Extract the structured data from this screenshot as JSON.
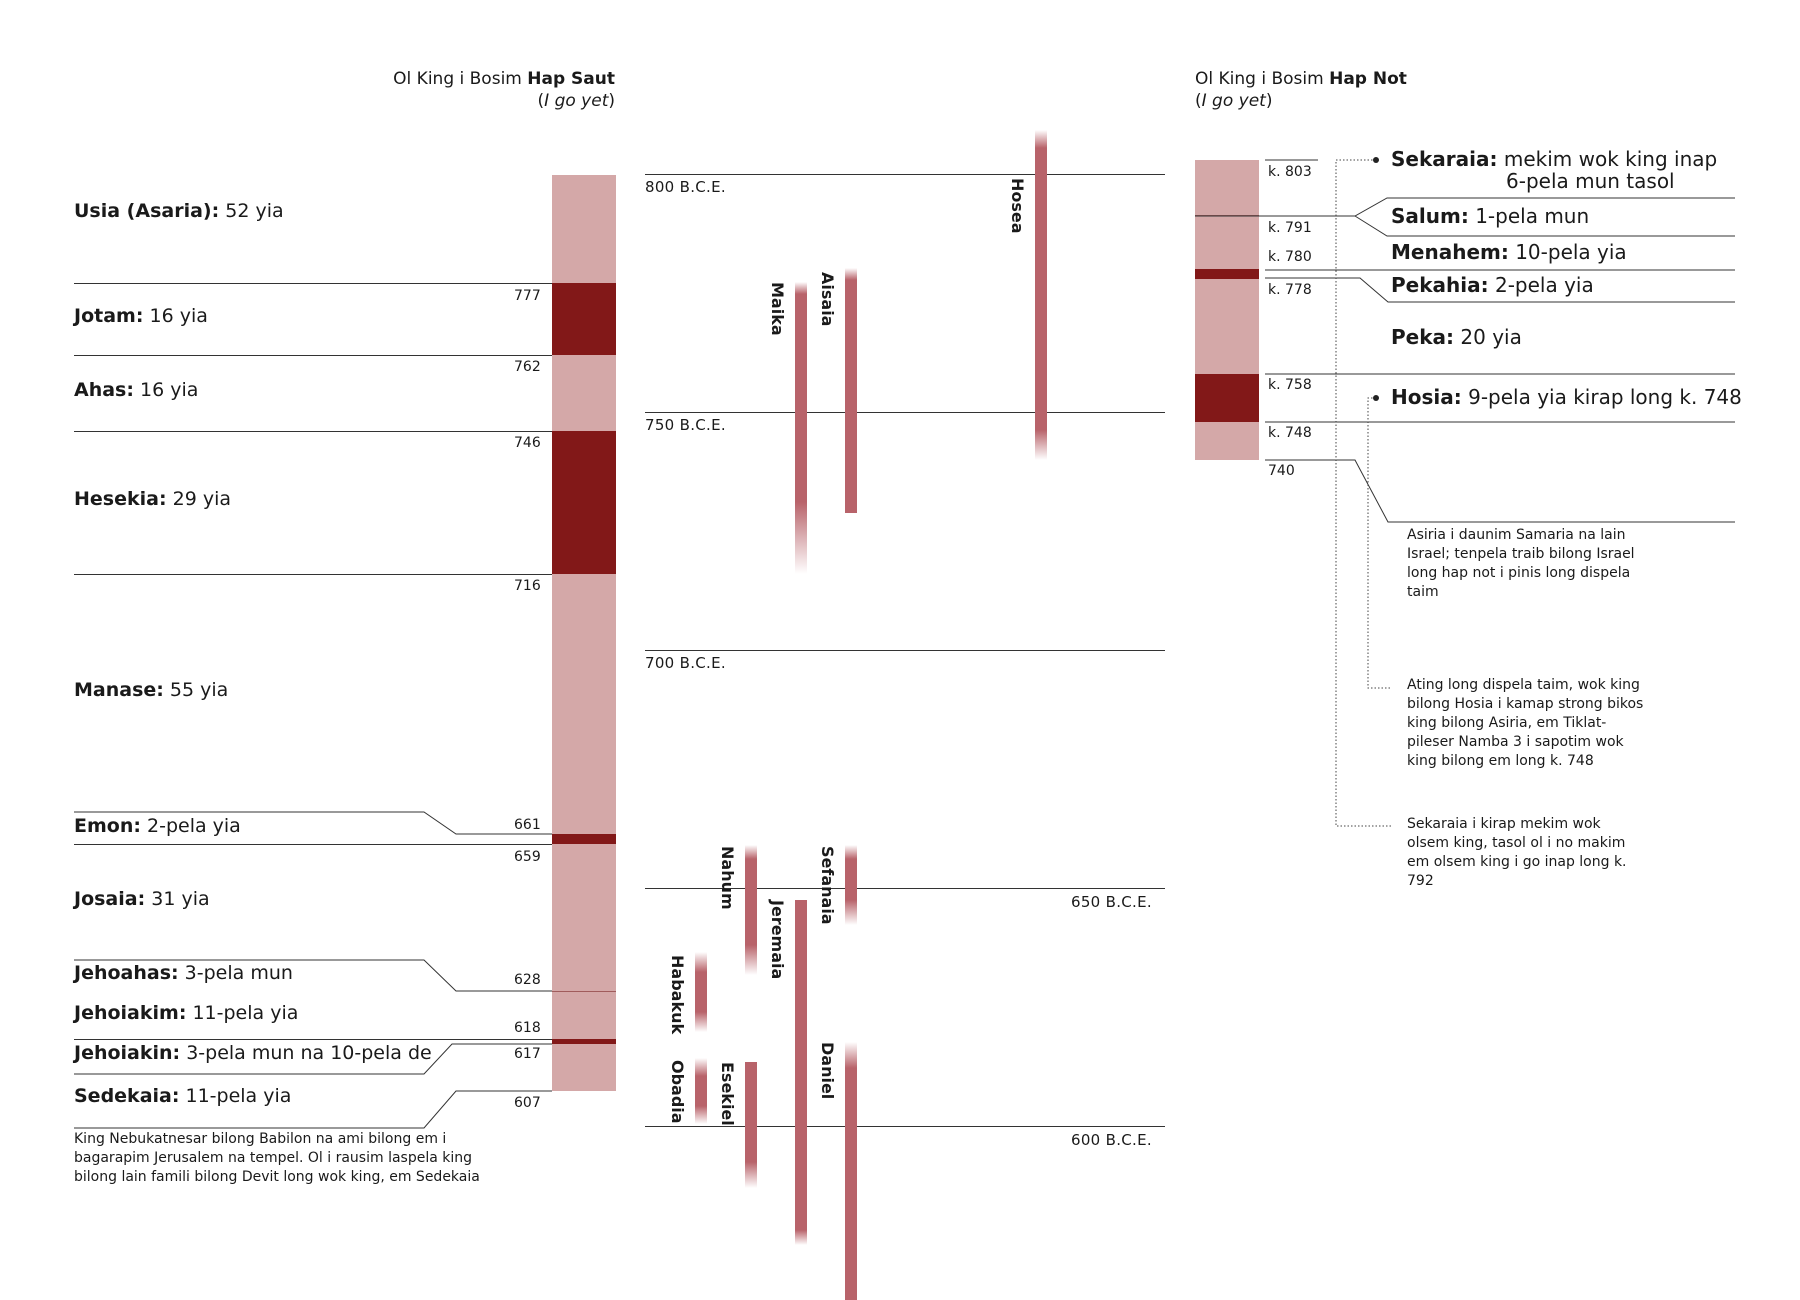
{
  "colors": {
    "light": "#d4a8a8",
    "dark": "#821818",
    "prophet": "#b8636a",
    "line": "#333333"
  },
  "south": {
    "header": {
      "prefix": "Ol King i Bosim ",
      "bold": "Hap Saut",
      "sub_open": "(",
      "sub_italic": "I go yet",
      "sub_close": ")"
    },
    "kings": [
      {
        "name": "Usia (Asaria):",
        "reign": " 52 yia"
      },
      {
        "name": "Jotam:",
        "reign": " 16 yia"
      },
      {
        "name": "Ahas:",
        "reign": " 16 yia"
      },
      {
        "name": "Hesekia:",
        "reign": " 29 yia"
      },
      {
        "name": "Manase:",
        "reign": " 55 yia"
      },
      {
        "name": "Emon:",
        "reign": " 2-pela yia"
      },
      {
        "name": "Josaia:",
        "reign": " 31 yia"
      },
      {
        "name": "Jehoahas:",
        "reign": " 3-pela mun"
      },
      {
        "name": "Jehoiakim:",
        "reign": " 11-pela yia"
      },
      {
        "name": "Jehoiakin:",
        "reign": " 3-pela mun na 10-pela de"
      },
      {
        "name": "Sedekaia:",
        "reign": " 11-pela yia"
      }
    ],
    "years": [
      "777",
      "762",
      "746",
      "716",
      "661",
      "659",
      "628",
      "618",
      "617",
      "607"
    ],
    "note": "King Nebukatnesar bilong Babilon na ami bilong em i bagarapim Jerusalem na tempel. Ol i rausim laspela king bilong lain famili bilong Devit long wok king, em Sedekaia"
  },
  "eras": [
    "800 B.C.E.",
    "750 B.C.E.",
    "700 B.C.E.",
    "650 B.C.E.",
    "600 B.C.E."
  ],
  "prophets": [
    "Hosea",
    "Aisaia",
    "Maika",
    "Nahum",
    "Sefanaia",
    "Jeremaia",
    "Habakuk",
    "Obadia",
    "Esekiel",
    "Daniel"
  ],
  "north": {
    "header": {
      "prefix": "Ol King i Bosim ",
      "bold": "Hap Not",
      "sub_open": "(",
      "sub_italic": "I go yet",
      "sub_close": ")"
    },
    "years": [
      "k. 803",
      "k. 791",
      "k. 780",
      "k. 778",
      "k. 758",
      "k. 748",
      "740"
    ],
    "kings": [
      {
        "name": "Sekaraia:",
        "reign": " mekim wok king inap",
        "reign2": "6-pela mun tasol"
      },
      {
        "name": "Salum:",
        "reign": " 1-pela mun"
      },
      {
        "name": "Menahem:",
        "reign": " 10-pela yia"
      },
      {
        "name": "Pekahia:",
        "reign": " 2-pela yia"
      },
      {
        "name": "Peka:",
        "reign": " 20 yia"
      },
      {
        "name": "Hosia:",
        "reign": " 9-pela yia kirap long k. 748"
      }
    ],
    "notes": [
      "Asiria i daunim Samaria na lain Israel; tenpela traib bilong Israel long hap not i pinis long dispela taim",
      "Ating long dispela taim, wok king bilong Hosia i kamap strong bikos king bilong Asiria, em Tiklat-pileser Namba 3 i sapotim wok king bilong em long k. 748",
      "Sekaraia i kirap mekim wok olsem king, tasol ol i no makim em olsem king i go inap long k. 792"
    ]
  }
}
